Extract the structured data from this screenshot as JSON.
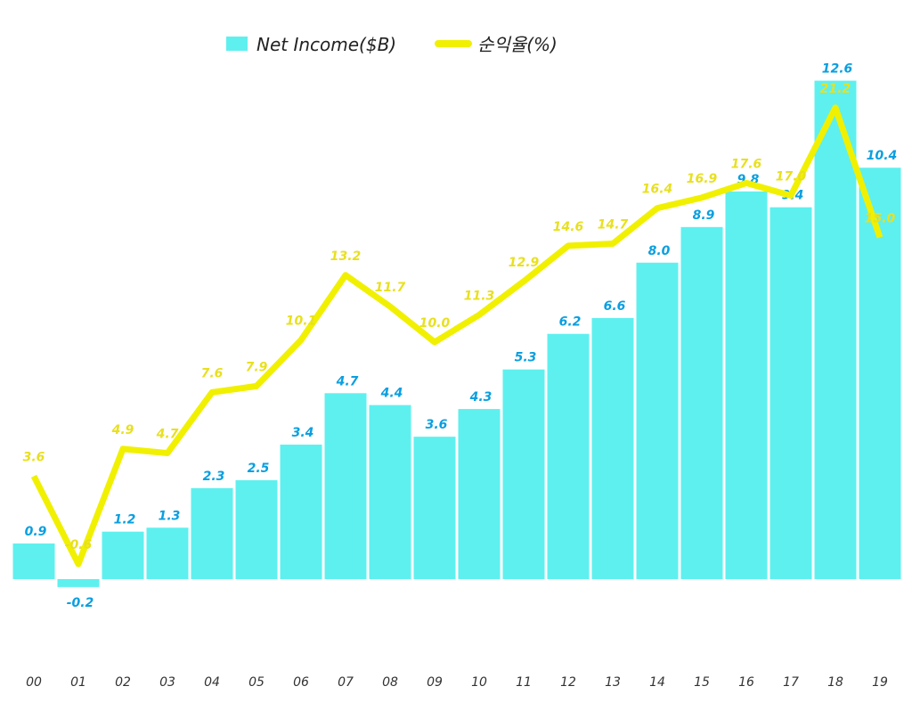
{
  "chart_data": {
    "type": "bar+line",
    "categories": [
      "00",
      "01",
      "02",
      "03",
      "04",
      "05",
      "06",
      "07",
      "08",
      "09",
      "10",
      "11",
      "12",
      "13",
      "14",
      "15",
      "16",
      "17",
      "18",
      "19"
    ],
    "series": [
      {
        "name": "Net Income($B)",
        "type": "bar",
        "color": "#5ef0ef",
        "label_color": "#0a9fe0",
        "values": [
          0.9,
          -0.2,
          1.2,
          1.3,
          2.3,
          2.5,
          3.4,
          4.7,
          4.4,
          3.6,
          4.3,
          5.3,
          6.2,
          6.6,
          8.0,
          8.9,
          9.8,
          9.4,
          12.6,
          10.4
        ]
      },
      {
        "name": "순익율(%)",
        "type": "line",
        "color": "#f0f000",
        "label_color": "#e8e020",
        "values": [
          3.6,
          -0.6,
          4.9,
          4.7,
          7.6,
          7.9,
          10.1,
          13.2,
          11.7,
          10.0,
          11.3,
          12.9,
          14.6,
          14.7,
          16.4,
          16.9,
          17.6,
          17.0,
          21.2,
          15.0
        ]
      }
    ],
    "legend": "top-center",
    "grid": false
  }
}
